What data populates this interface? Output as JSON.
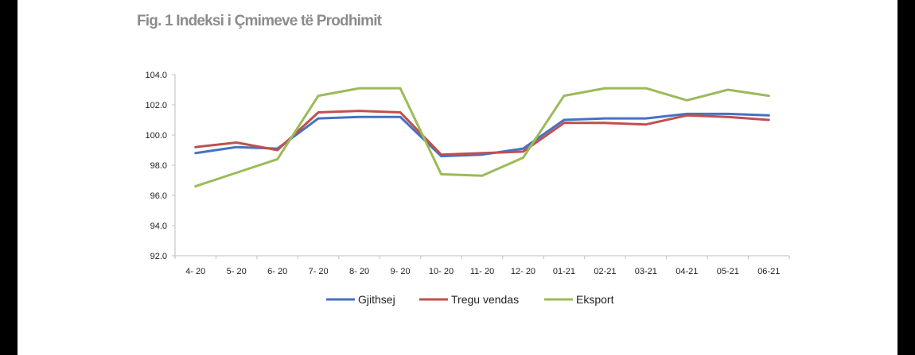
{
  "chart_data": {
    "type": "line",
    "title": "Fig. 1 Indeksi i Çmimeve të Prodhimit",
    "xlabel": "",
    "ylabel": "",
    "categories": [
      "4- 20",
      "5- 20",
      "6- 20",
      "7- 20",
      "8- 20",
      "9- 20",
      "10- 20",
      "11- 20",
      "12- 20",
      "01-21",
      "02-21",
      "03-21",
      "04-21",
      "05-21",
      "06-21"
    ],
    "ylim": [
      92.0,
      104.0
    ],
    "yticks": [
      "104.0",
      "102.0",
      "100.0",
      "98.0",
      "96.0",
      "94.0",
      "92.0"
    ],
    "grid": false,
    "legend_position": "bottom",
    "series": [
      {
        "name": "Gjithsej",
        "color": "#4472C4",
        "values": [
          98.8,
          99.2,
          99.1,
          101.1,
          101.2,
          101.2,
          98.6,
          98.7,
          99.1,
          101.0,
          101.1,
          101.1,
          101.4,
          101.4,
          101.3
        ]
      },
      {
        "name": "Tregu vendas",
        "color": "#C0504D",
        "values": [
          99.2,
          99.5,
          99.0,
          101.5,
          101.6,
          101.5,
          98.7,
          98.8,
          98.9,
          100.8,
          100.8,
          100.7,
          101.3,
          101.2,
          101.0
        ]
      },
      {
        "name": "Eksport",
        "color": "#9BBB59",
        "values": [
          96.6,
          97.5,
          98.4,
          102.6,
          103.1,
          103.1,
          97.4,
          97.3,
          98.5,
          102.6,
          103.1,
          103.1,
          102.3,
          103.0,
          102.6
        ]
      }
    ]
  }
}
